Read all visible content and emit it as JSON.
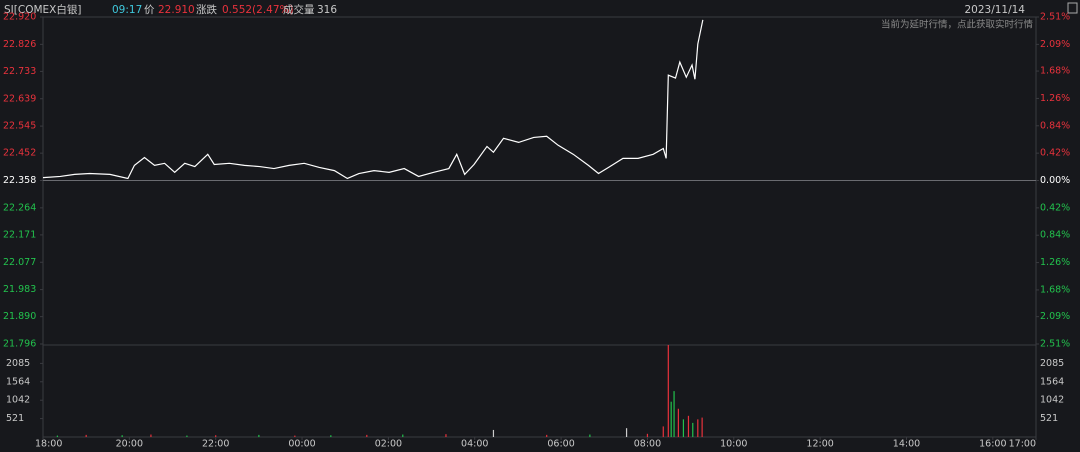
{
  "header": {
    "symbol": "SI[COMEX白银]",
    "time": "09:17",
    "price_label": "价",
    "price": "22.910",
    "change_label": "涨跌",
    "change": "0.552(2.47%)",
    "volume_label": "成交量",
    "volume": "316",
    "date": "2023/11/14",
    "notice": "当前为延时行情，点此获取实时行情"
  },
  "chart_data": [
    {
      "type": "line",
      "color": "#ffffff",
      "up_color": "#e8323c",
      "down_color": "#22c24d",
      "baseline": 22.358,
      "x": [
        0,
        24,
        44,
        65,
        93,
        118,
        127,
        141,
        155,
        169,
        183,
        197,
        211,
        229,
        238,
        259,
        280,
        301,
        321,
        342,
        363,
        384,
        405,
        423,
        439,
        460,
        481,
        502,
        522,
        543,
        564,
        575,
        586,
        599,
        617,
        626,
        640,
        661,
        682,
        700,
        716,
        737,
        758,
        772,
        786,
        806,
        827,
        848,
        862,
        866,
        869,
        879,
        885,
        894,
        902,
        906,
        910,
        917
      ],
      "values": [
        22.368,
        22.372,
        22.379,
        22.382,
        22.379,
        22.365,
        22.41,
        22.437,
        22.41,
        22.417,
        22.386,
        22.417,
        22.406,
        22.448,
        22.413,
        22.417,
        22.41,
        22.406,
        22.399,
        22.41,
        22.417,
        22.403,
        22.392,
        22.365,
        22.382,
        22.392,
        22.386,
        22.399,
        22.372,
        22.386,
        22.399,
        22.448,
        22.379,
        22.413,
        22.475,
        22.455,
        22.503,
        22.489,
        22.506,
        22.51,
        22.479,
        22.448,
        22.41,
        22.382,
        22.403,
        22.434,
        22.434,
        22.448,
        22.468,
        22.434,
        22.72,
        22.71,
        22.765,
        22.713,
        22.755,
        22.706,
        22.827,
        22.91
      ],
      "xlim": [
        0,
        1380
      ],
      "ylim": [
        21.796,
        22.92
      ],
      "yticks": [
        {
          "value": 22.92,
          "label": "22.920"
        },
        22.826,
        22.733,
        22.639,
        22.545,
        22.452,
        22.358,
        22.264,
        22.171,
        22.077,
        21.983,
        {
          "value": 21.89,
          "label": "21.890"
        },
        21.796
      ],
      "y2lim": [
        -2.51,
        2.51
      ],
      "y2ticks": [
        {
          "value": 2.51,
          "label": "2.51%"
        },
        {
          "value": 2.09,
          "label": "2.09%"
        },
        {
          "value": 1.68,
          "label": "1.68%"
        },
        {
          "value": 1.26,
          "label": "1.26%"
        },
        {
          "value": 0.84,
          "label": "0.84%"
        },
        {
          "value": 0.42,
          "label": "0.42%"
        },
        {
          "value": 0,
          "label": "0.00%"
        },
        {
          "value": -0.42,
          "label": "0.42%"
        },
        {
          "value": -0.84,
          "label": "0.84%"
        },
        {
          "value": -1.26,
          "label": "1.26%"
        },
        {
          "value": -1.68,
          "label": "1.68%"
        },
        {
          "value": -2.09,
          "label": "2.09%"
        },
        {
          "value": -2.51,
          "label": "2.51%"
        }
      ]
    },
    {
      "type": "volume",
      "x": [
        20,
        60,
        110,
        150,
        200,
        240,
        300,
        350,
        400,
        450,
        500,
        560,
        626,
        700,
        760,
        811,
        840,
        862,
        869,
        873,
        877,
        883,
        890,
        897,
        903,
        910,
        916
      ],
      "values": [
        40,
        60,
        50,
        70,
        40,
        50,
        60,
        40,
        50,
        60,
        70,
        80,
        200,
        60,
        70,
        250,
        90,
        300,
        2606,
        1000,
        1300,
        800,
        500,
        600,
        400,
        500,
        550
      ],
      "colors": [
        "#22c24d",
        "#e8323c",
        "#22c24d",
        "#e8323c",
        "#22c24d",
        "#e8323c",
        "#22c24d",
        "#e8323c",
        "#22c24d",
        "#e8323c",
        "#22c24d",
        "#e8323c",
        "#cccccc",
        "#e8323c",
        "#22c24d",
        "#cccccc",
        "#e8323c",
        "#e8323c",
        "#e8323c",
        "#22c24d",
        "#22c24d",
        "#e8323c",
        "#22c24d",
        "#e8323c",
        "#22c24d",
        "#e8323c",
        "#e8323c"
      ],
      "xlim": [
        0,
        1380
      ],
      "ylim": [
        0,
        2606
      ],
      "yticks": [
        2085,
        1564,
        1042,
        521
      ],
      "xticks": [
        {
          "value": 0,
          "label": "18:00"
        },
        {
          "value": 120,
          "label": "20:00"
        },
        {
          "value": 240,
          "label": "22:00"
        },
        {
          "value": 360,
          "label": "00:00"
        },
        {
          "value": 480,
          "label": "02:00"
        },
        {
          "value": 600,
          "label": "04:00"
        },
        {
          "value": 720,
          "label": "06:00"
        },
        {
          "value": 840,
          "label": "08:00"
        },
        {
          "value": 960,
          "label": "10:00"
        },
        {
          "value": 1080,
          "label": "12:00"
        },
        {
          "value": 1200,
          "label": "14:00"
        },
        {
          "value": 1320,
          "label": "16:00"
        },
        {
          "value": 1380,
          "label": "17:00"
        }
      ]
    }
  ]
}
